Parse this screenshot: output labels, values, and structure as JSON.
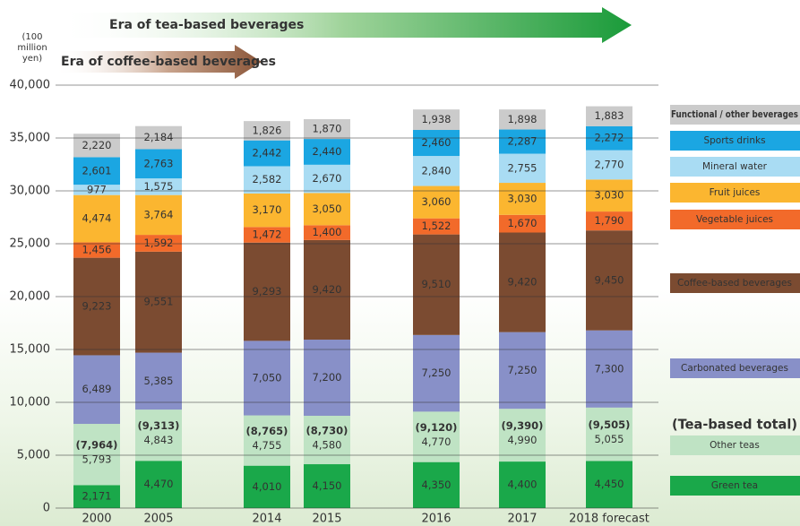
{
  "chart_data": {
    "type": "stacked_bar",
    "y_label": "(100 million yen)",
    "annotations": [
      "Era of tea-based beverages",
      "Era of coffee-based beverages"
    ],
    "categories": [
      "2000",
      "2005",
      "2014",
      "2015",
      "2016",
      "2017",
      "2018 forecast"
    ],
    "ylim": [
      0,
      40000
    ],
    "yticks": [
      0,
      {
        "value": 5000,
        "label": "5,000"
      },
      {
        "value": 10000,
        "label": "10,000"
      },
      {
        "value": 15000,
        "label": "15,000"
      },
      {
        "value": 20000,
        "label": "20,000"
      },
      {
        "value": 25000,
        "label": "25,000"
      },
      {
        "value": 30000,
        "label": "30,000"
      },
      {
        "value": 35000,
        "label": "35,000"
      },
      {
        "value": 40000,
        "label": "40,000"
      }
    ],
    "grid": true,
    "series": [
      {
        "name": "Green tea",
        "color": "#1aa84a",
        "values": [
          2171,
          4470,
          4010,
          4150,
          4350,
          4400,
          4450
        ],
        "value_labels": [
          "2,171",
          "4,470",
          "4,010",
          "4,150",
          "4,350",
          "4,400",
          "4,450"
        ]
      },
      {
        "name": "Other teas",
        "color": "#bfe3c4",
        "values": [
          5793,
          4843,
          4755,
          4580,
          4770,
          4990,
          5055
        ],
        "value_labels": [
          "5,793",
          "4,843",
          "4,755",
          "4,580",
          "4,770",
          "4,990",
          "5,055"
        ]
      },
      {
        "name": "Carbonated beverages",
        "color": "#8890c8",
        "values": [
          6489,
          5385,
          7050,
          7200,
          7250,
          7250,
          7300
        ],
        "value_labels": [
          "6,489",
          "5,385",
          "7,050",
          "7,200",
          "7,250",
          "7,250",
          "7,300"
        ]
      },
      {
        "name": "Coffee-based beverages",
        "color": "#7b4b31",
        "values": [
          9223,
          9551,
          9293,
          9420,
          9510,
          9420,
          9450
        ],
        "value_labels": [
          "9,223",
          "9,551",
          "9,293",
          "9,420",
          "9,510",
          "9,420",
          "9,450"
        ]
      },
      {
        "name": "Vegetable juices",
        "color": "#f26a2a",
        "values": [
          1456,
          1592,
          1472,
          1400,
          1522,
          1670,
          1790
        ],
        "value_labels": [
          "1,456",
          "1,592",
          "1,472",
          "1,400",
          "1,522",
          "1,670",
          "1,790"
        ]
      },
      {
        "name": "Fruit juices",
        "color": "#fbb630",
        "values": [
          4474,
          3764,
          3170,
          3050,
          3060,
          3030,
          3030
        ],
        "value_labels": [
          "4,474",
          "3,764",
          "3,170",
          "3,050",
          "3,060",
          "3,030",
          "3,030"
        ]
      },
      {
        "name": "Mineral water",
        "color": "#a9dcf3",
        "values": [
          977,
          1575,
          2582,
          2670,
          2840,
          2755,
          2770
        ],
        "value_labels": [
          "977",
          "1,575",
          "2,582",
          "2,670",
          "2,840",
          "2,755",
          "2,770"
        ]
      },
      {
        "name": "Sports drinks",
        "color": "#1ba6e2",
        "values": [
          2601,
          2763,
          2442,
          2440,
          2460,
          2287,
          2272
        ],
        "value_labels": [
          "2,601",
          "2,763",
          "2,442",
          "2,440",
          "2,460",
          "2,287",
          "2,272"
        ]
      },
      {
        "name": "Functional / other beverages",
        "color": "#cbcbcb",
        "values": [
          2220,
          2184,
          1826,
          1870,
          1938,
          1898,
          1883
        ],
        "value_labels": [
          "2,220",
          "2,184",
          "1,826",
          "1,870",
          "1,938",
          "1,898",
          "1,883"
        ]
      }
    ],
    "tea_total": {
      "name": "(Tea-based total)",
      "color": "#2f9a3e",
      "values": [
        7964,
        9313,
        8765,
        8730,
        9120,
        9390,
        9505
      ],
      "value_labels": [
        "(7,964)",
        "(9,313)",
        "(8,765)",
        "(8,730)",
        "(9,120)",
        "(9,390)",
        "(9,505)"
      ]
    }
  }
}
